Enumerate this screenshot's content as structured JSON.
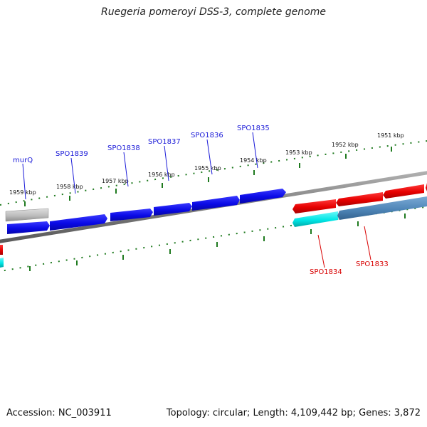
{
  "title": "Ruegeria pomeroyi DSS-3, complete genome",
  "footer": {
    "accession": "Accession: NC_003911",
    "summary": "Topology: circular; Length: 4,109,442 bp; Genes: 3,872"
  },
  "colors": {
    "forward_gene": "#0a0ae6",
    "reverse_gene": "#e60000",
    "cyan_gene": "#00e6e6",
    "steel_gene": "#4f86b8",
    "gray_gene": "#bdbdbd",
    "backbone": "#8a8a8a",
    "ticks": "#1f7a1f",
    "blue_label": "#1a1ad8",
    "red_label": "#d80000"
  },
  "ticks": [
    "1951 kbp",
    "1952 kbp",
    "1953 kbp",
    "1954 kbp",
    "1955 kbp",
    "1956 kbp",
    "1957 kbp",
    "1958 kbp",
    "1959 kbp"
  ],
  "gene_labels": {
    "forward": [
      "murQ",
      "SPO1839",
      "SPO1838",
      "SPO1837",
      "SPO1836",
      "SPO1835"
    ],
    "reverse": [
      "SPO1834",
      "SPO1833"
    ]
  }
}
